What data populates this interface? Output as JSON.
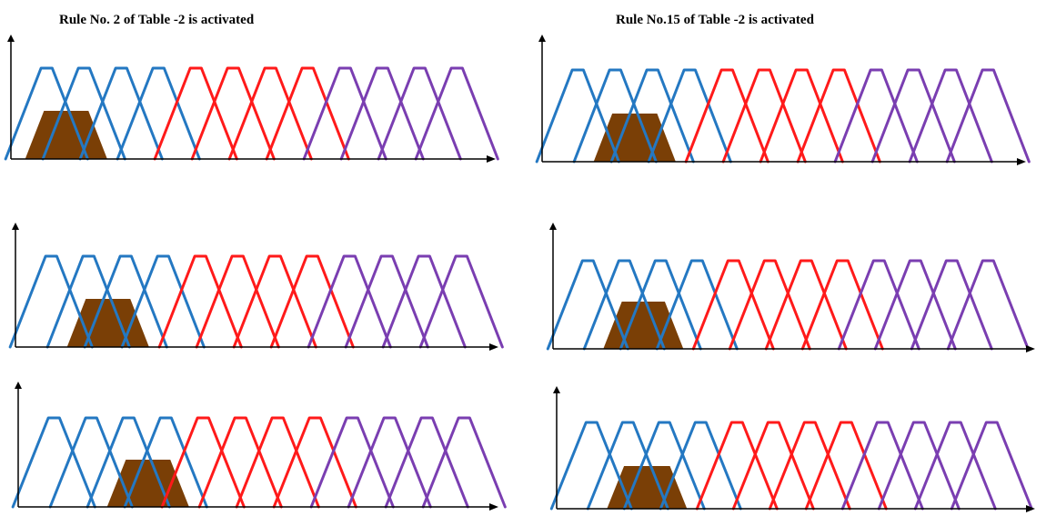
{
  "headings": {
    "left": "Rule No. 2 of Table -2 is activated",
    "right": "Rule No.15 of Table -2 is activated"
  },
  "colors": {
    "group1": "#2478c2",
    "group2": "#ff1a1a",
    "group3": "#7a3eb1",
    "activated_fill": "#7a3f06",
    "axis": "#000000"
  },
  "membership": {
    "functions_per_plot": 12,
    "groups_of_four": [
      "blue",
      "red",
      "purple"
    ]
  },
  "panels": [
    {
      "column": "left",
      "row": 1,
      "activated_function_index": 1
    },
    {
      "column": "left",
      "row": 2,
      "activated_function_index": 2
    },
    {
      "column": "left",
      "row": 3,
      "activated_function_index": 3
    },
    {
      "column": "right",
      "row": 1,
      "activated_function_index": 2
    },
    {
      "column": "right",
      "row": 2,
      "activated_function_index": 2
    },
    {
      "column": "right",
      "row": 3,
      "activated_function_index": 2
    }
  ]
}
